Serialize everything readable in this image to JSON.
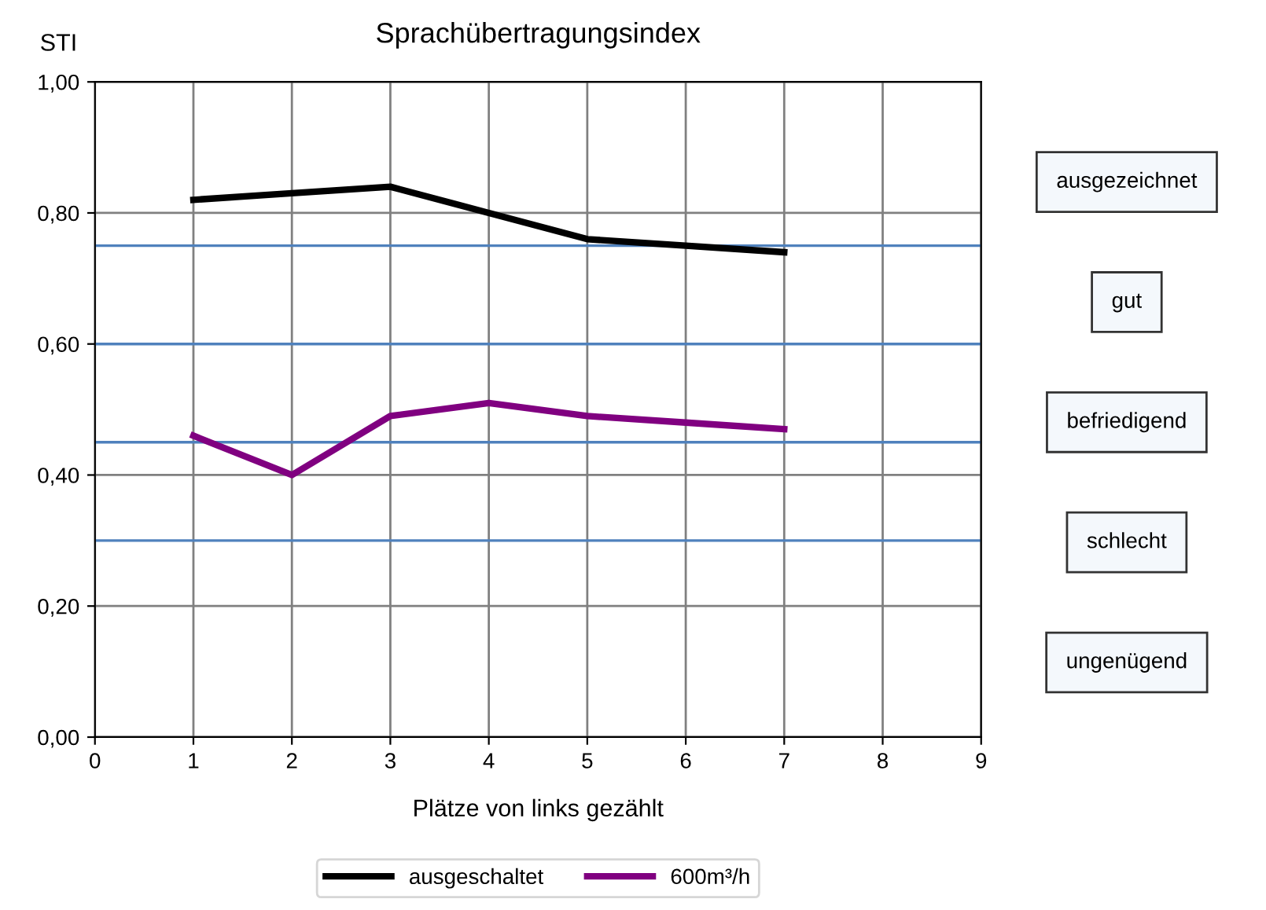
{
  "chart_data": {
    "type": "line",
    "title": "Sprachübertragungsindex",
    "ylabel": "STI",
    "xlabel": "Plätze von links gezählt",
    "x": [
      1,
      2,
      3,
      4,
      5,
      6,
      7
    ],
    "series": [
      {
        "name": "ausgeschaltet",
        "color": "#000000",
        "values": [
          0.82,
          0.83,
          0.84,
          0.8,
          0.76,
          0.75,
          0.74
        ]
      },
      {
        "name": "600m³/h",
        "color": "#800080",
        "values": [
          0.46,
          0.4,
          0.49,
          0.51,
          0.49,
          0.48,
          0.47
        ]
      }
    ],
    "xlim": [
      0,
      9
    ],
    "xticks": [
      0,
      1,
      2,
      3,
      4,
      5,
      6,
      7,
      8,
      9
    ],
    "ylim": [
      0,
      1
    ],
    "yticks": [
      {
        "value": 0,
        "label": "0,00"
      },
      {
        "value": 0.2,
        "label": "0,20"
      },
      {
        "value": 0.4,
        "label": "0,40"
      },
      {
        "value": 0.6,
        "label": "0,60"
      },
      {
        "value": 0.8,
        "label": "0,80"
      },
      {
        "value": 1,
        "label": "1,00"
      }
    ],
    "ref_lines": [
      {
        "axis": "y",
        "value": 0.75,
        "color": "#4f81bd"
      },
      {
        "axis": "y",
        "value": 0.6,
        "color": "#4f81bd"
      },
      {
        "axis": "y",
        "value": 0.45,
        "color": "#4f81bd"
      },
      {
        "axis": "y",
        "value": 0.3,
        "color": "#4f81bd"
      }
    ],
    "annotations": [
      "ausgezeichnet",
      "gut",
      "befriedigend",
      "schlecht",
      "ungenügend"
    ],
    "grid": true,
    "legend": "bottom",
    "marker": "none",
    "line_style": "solid"
  }
}
